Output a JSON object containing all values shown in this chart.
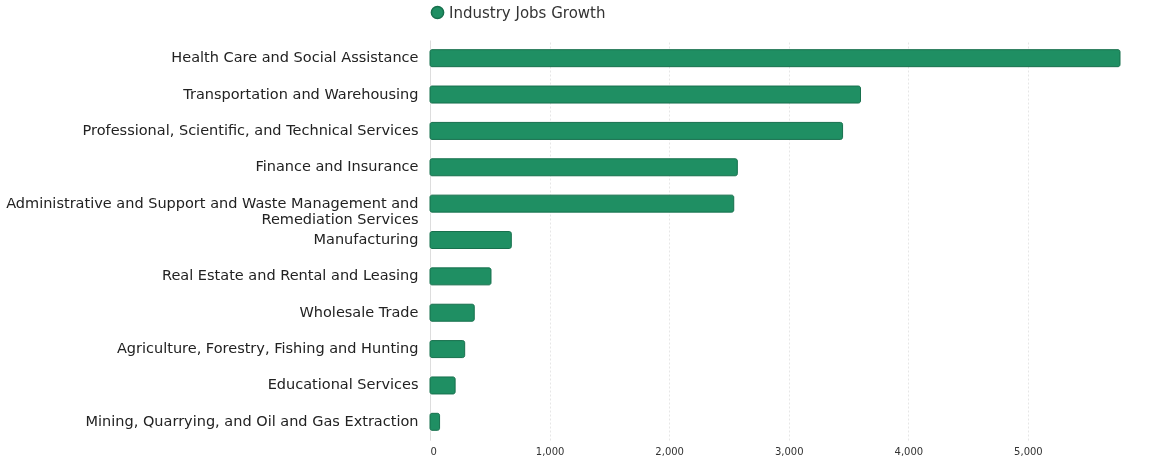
{
  "chart_data": {
    "type": "bar",
    "orientation": "horizontal",
    "categories": [
      "Health Care and Social Assistance",
      "Transportation and Warehousing",
      "Professional, Scientific, and Technical Services",
      "Finance and Insurance",
      "Administrative and Support and Waste Management and Remediation Services",
      "Manufacturing",
      "Real Estate and Rental and Leasing",
      "Wholesale Trade",
      "Agriculture, Forestry, Fishing and Hunting",
      "Educational Services",
      "Mining, Quarrying, and Oil and Gas Extraction"
    ],
    "series": [
      {
        "name": "Industry Jobs Growth",
        "color": "#1f8f63",
        "values": [
          5770,
          3600,
          3450,
          2570,
          2540,
          680,
          510,
          370,
          290,
          210,
          80
        ]
      }
    ],
    "xlim": [
      0,
      5770
    ],
    "xticks": [
      0,
      {
        "value": 1000,
        "label": "1,000"
      },
      {
        "value": 2000,
        "label": "2,000"
      },
      {
        "value": 3000,
        "label": "3,000"
      },
      {
        "value": 4000,
        "label": "4,000"
      },
      {
        "value": 5000,
        "label": "5,000"
      }
    ],
    "grid": "x",
    "legend": "top"
  }
}
